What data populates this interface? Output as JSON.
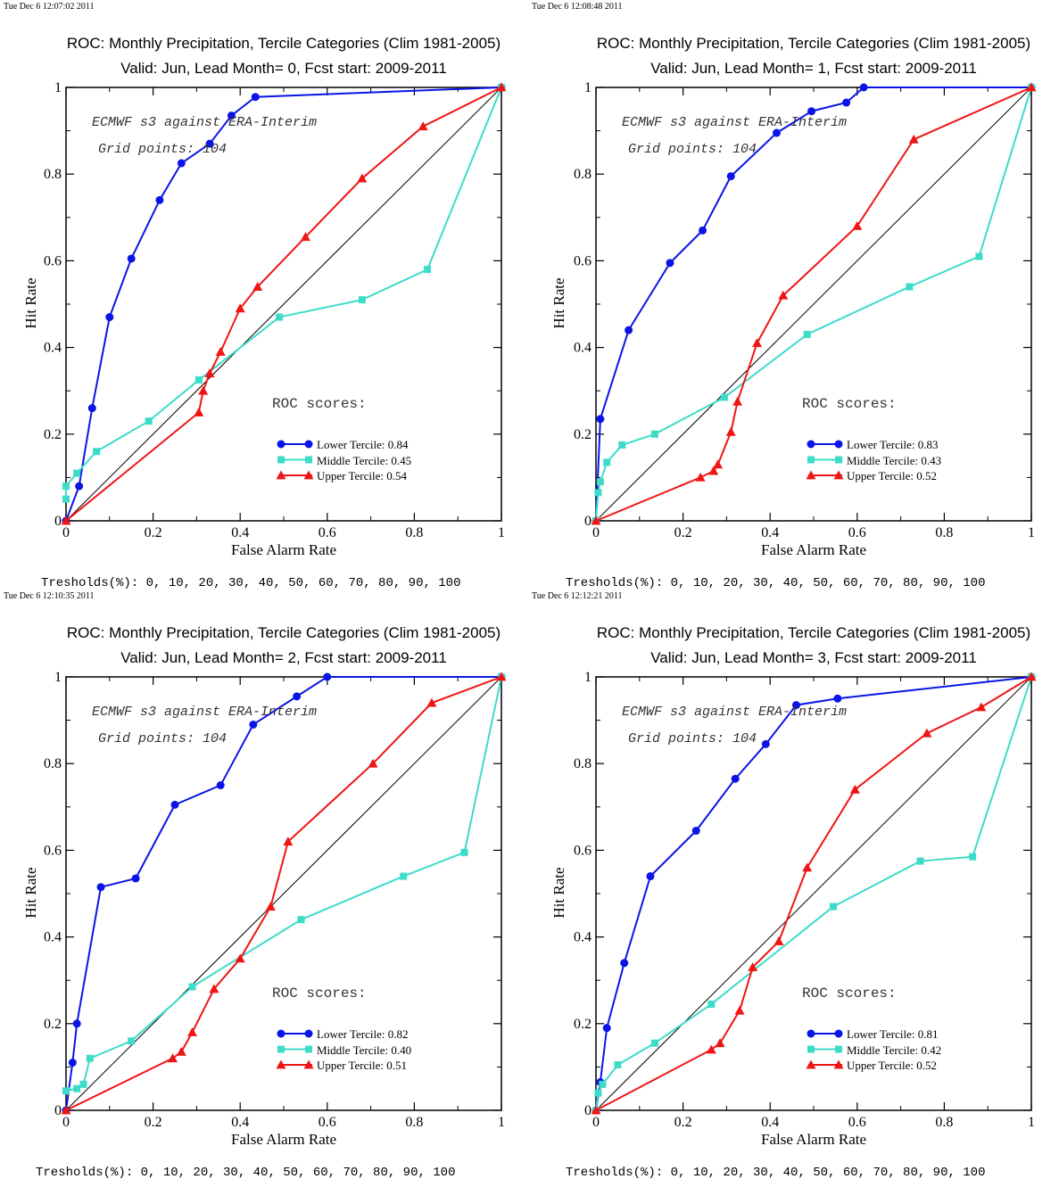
{
  "colors": {
    "lower": "#0a14e6",
    "middle": "#3cdcc8",
    "upper": "#f01414",
    "diagonal": "#000000"
  },
  "chart_data": [
    {
      "type": "line",
      "timestamp": "Tue Dec  6 12:07:02 2011",
      "title": "ROC: Monthly Precipitation, Tercile Categories (Clim 1981-2005)",
      "subtitle": "Valid: Jun, Lead Month= 0, Fcst start: 2009-2011",
      "xlabel": "False Alarm Rate",
      "ylabel": "Hit Rate",
      "xlim": [
        0,
        1
      ],
      "ylim": [
        0,
        1
      ],
      "xticks": [
        "0",
        "0.2",
        "0.4",
        "0.6",
        "0.8",
        "1"
      ],
      "yticks": [
        "0",
        "0.2",
        "0.4",
        "0.6",
        "0.8",
        "1"
      ],
      "annotation1": "ECMWF s3 against ERA-Interim",
      "annotation2": "Grid points:  104",
      "scores_title": "ROC scores:",
      "thresholds": "Tresholds(%): 0, 10, 20, 30, 40, 50, 60, 70, 80, 90, 100",
      "series": [
        {
          "name": "Lower Tercile: 0.84",
          "marker": "circle",
          "x": [
            0,
            0.03,
            0.06,
            0.1,
            0.15,
            0.215,
            0.265,
            0.33,
            0.38,
            0.435,
            1
          ],
          "y": [
            0,
            0.08,
            0.26,
            0.47,
            0.605,
            0.74,
            0.825,
            0.87,
            0.935,
            0.978,
            1
          ]
        },
        {
          "name": "Middle Tercile: 0.45",
          "marker": "square",
          "x": [
            0,
            0,
            0.025,
            0.07,
            0.19,
            0.305,
            0.49,
            0.68,
            0.83,
            1
          ],
          "y": [
            0.05,
            0.08,
            0.11,
            0.16,
            0.23,
            0.325,
            0.47,
            0.51,
            0.58,
            1
          ]
        },
        {
          "name": "Upper Tercile: 0.54",
          "marker": "triangle",
          "x": [
            0,
            0.305,
            0.315,
            0.33,
            0.355,
            0.4,
            0.44,
            0.55,
            0.68,
            0.82,
            1
          ],
          "y": [
            0,
            0.25,
            0.3,
            0.34,
            0.39,
            0.49,
            0.54,
            0.655,
            0.79,
            0.91,
            1
          ]
        }
      ]
    },
    {
      "type": "line",
      "timestamp": "Tue Dec  6 12:08:48 2011",
      "title": "ROC: Monthly Precipitation, Tercile Categories (Clim 1981-2005)",
      "subtitle": "Valid: Jun, Lead Month= 1, Fcst start: 2009-2011",
      "xlabel": "False Alarm Rate",
      "ylabel": "Hit Rate",
      "xlim": [
        0,
        1
      ],
      "ylim": [
        0,
        1
      ],
      "xticks": [
        "0",
        "0.2",
        "0.4",
        "0.6",
        "0.8",
        "1"
      ],
      "yticks": [
        "0",
        "0.2",
        "0.4",
        "0.6",
        "0.8",
        "1"
      ],
      "annotation1": "ECMWF s3 against ERA-Interim",
      "annotation2": "Grid points:  104",
      "scores_title": "ROC scores:",
      "thresholds": "Tresholds(%): 0, 10, 20, 30, 40, 50, 60, 70, 80, 90, 100",
      "series": [
        {
          "name": "Lower Tercile: 0.83",
          "marker": "circle",
          "x": [
            0,
            0.01,
            0.075,
            0.17,
            0.245,
            0.31,
            0.415,
            0.495,
            0.575,
            0.615,
            1
          ],
          "y": [
            0,
            0.235,
            0.44,
            0.595,
            0.67,
            0.795,
            0.895,
            0.945,
            0.965,
            1,
            1
          ]
        },
        {
          "name": "Middle Tercile: 0.43",
          "marker": "square",
          "x": [
            0,
            0.005,
            0.01,
            0.025,
            0.06,
            0.135,
            0.295,
            0.485,
            0.72,
            0.88,
            1
          ],
          "y": [
            0,
            0.065,
            0.09,
            0.135,
            0.175,
            0.2,
            0.285,
            0.43,
            0.54,
            0.61,
            1
          ]
        },
        {
          "name": "Upper Tercile: 0.52",
          "marker": "triangle",
          "x": [
            0,
            0.24,
            0.27,
            0.28,
            0.31,
            0.325,
            0.37,
            0.43,
            0.6,
            0.73,
            1
          ],
          "y": [
            0,
            0.1,
            0.115,
            0.13,
            0.205,
            0.275,
            0.41,
            0.52,
            0.68,
            0.88,
            1
          ]
        }
      ]
    },
    {
      "type": "line",
      "timestamp": "Tue Dec  6 12:10:35 2011",
      "title": "ROC: Monthly Precipitation, Tercile Categories (Clim 1981-2005)",
      "subtitle": "Valid: Jun, Lead Month= 2, Fcst start: 2009-2011",
      "xlabel": "False Alarm Rate",
      "ylabel": "Hit Rate",
      "xlim": [
        0,
        1
      ],
      "ylim": [
        0,
        1
      ],
      "xticks": [
        "0",
        "0.2",
        "0.4",
        "0.6",
        "0.8",
        "1"
      ],
      "yticks": [
        "0",
        "0.2",
        "0.4",
        "0.6",
        "0.8",
        "1"
      ],
      "annotation1": "ECMWF s3 against ERA-Interim",
      "annotation2": "Grid points:  104",
      "scores_title": "ROC scores:",
      "thresholds": "Tresholds(%): 0, 10, 20, 30, 40, 50, 60, 70, 80, 90, 100",
      "series": [
        {
          "name": "Lower Tercile: 0.82",
          "marker": "circle",
          "x": [
            0,
            0.015,
            0.025,
            0.08,
            0.16,
            0.25,
            0.355,
            0.43,
            0.53,
            0.6,
            1
          ],
          "y": [
            0,
            0.11,
            0.2,
            0.515,
            0.535,
            0.705,
            0.75,
            0.89,
            0.955,
            1,
            1
          ]
        },
        {
          "name": "Middle Tercile: 0.40",
          "marker": "square",
          "x": [
            0,
            0.025,
            0.04,
            0.055,
            0.15,
            0.29,
            0.54,
            0.775,
            0.915,
            1
          ],
          "y": [
            0.045,
            0.05,
            0.06,
            0.12,
            0.16,
            0.285,
            0.44,
            0.54,
            0.595,
            1
          ]
        },
        {
          "name": "Upper Tercile: 0.51",
          "marker": "triangle",
          "x": [
            0,
            0.245,
            0.265,
            0.29,
            0.34,
            0.4,
            0.47,
            0.51,
            0.705,
            0.84,
            1
          ],
          "y": [
            0,
            0.12,
            0.135,
            0.18,
            0.28,
            0.35,
            0.47,
            0.62,
            0.8,
            0.94,
            1
          ]
        }
      ]
    },
    {
      "type": "line",
      "timestamp": "Tue Dec  6 12:12:21 2011",
      "title": "ROC: Monthly Precipitation, Tercile Categories (Clim 1981-2005)",
      "subtitle": "Valid: Jun, Lead Month= 3, Fcst start: 2009-2011",
      "xlabel": "False Alarm Rate",
      "ylabel": "Hit Rate",
      "xlim": [
        0,
        1
      ],
      "ylim": [
        0,
        1
      ],
      "xticks": [
        "0",
        "0.2",
        "0.4",
        "0.6",
        "0.8",
        "1"
      ],
      "yticks": [
        "0",
        "0.2",
        "0.4",
        "0.6",
        "0.8",
        "1"
      ],
      "annotation1": "ECMWF s3 against ERA-Interim",
      "annotation2": "Grid points:  104",
      "scores_title": "ROC scores:",
      "thresholds": "Tresholds(%): 0, 10, 20, 30, 40, 50, 60, 70, 80, 90, 100",
      "series": [
        {
          "name": "Lower Tercile: 0.81",
          "marker": "circle",
          "x": [
            0,
            0.01,
            0.025,
            0.065,
            0.125,
            0.23,
            0.32,
            0.39,
            0.46,
            0.555,
            1
          ],
          "y": [
            0,
            0.065,
            0.19,
            0.34,
            0.54,
            0.645,
            0.765,
            0.845,
            0.935,
            0.95,
            1
          ]
        },
        {
          "name": "Middle Tercile: 0.42",
          "marker": "square",
          "x": [
            0,
            0.005,
            0.015,
            0.05,
            0.135,
            0.265,
            0.545,
            0.745,
            0.865,
            1
          ],
          "y": [
            0,
            0.04,
            0.06,
            0.105,
            0.155,
            0.245,
            0.47,
            0.575,
            0.585,
            1
          ]
        },
        {
          "name": "Upper Tercile: 0.52",
          "marker": "triangle",
          "x": [
            0,
            0.265,
            0.285,
            0.33,
            0.36,
            0.42,
            0.485,
            0.595,
            0.76,
            0.885,
            1
          ],
          "y": [
            0,
            0.14,
            0.155,
            0.23,
            0.33,
            0.39,
            0.56,
            0.74,
            0.87,
            0.93,
            1
          ]
        }
      ]
    }
  ]
}
